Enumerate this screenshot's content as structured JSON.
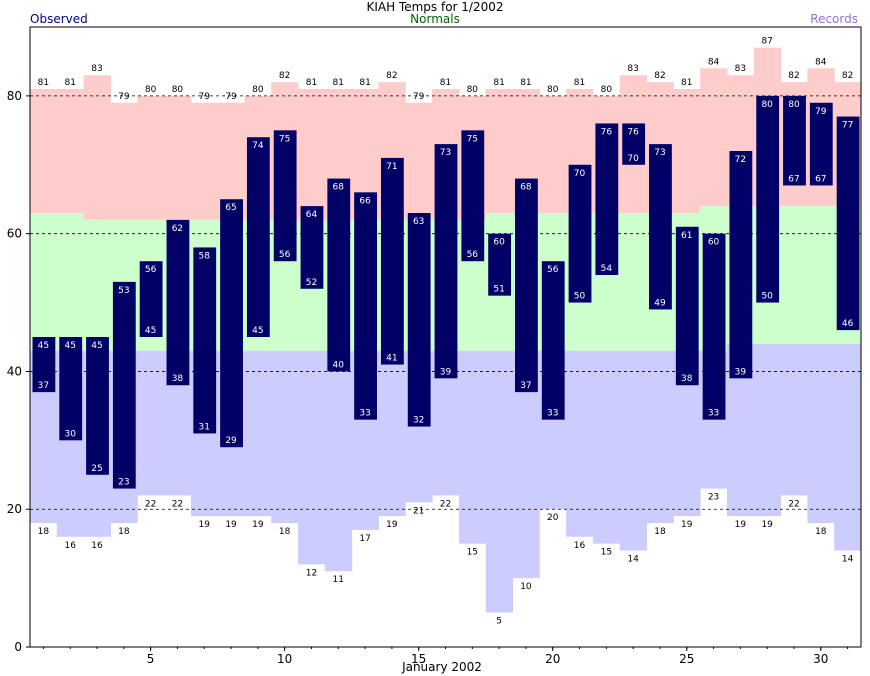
{
  "header": {
    "title": "KIAH Temps for 1/2002",
    "observed_label": "Observed",
    "normals_label": "Normals",
    "records_label": "Records"
  },
  "colors": {
    "observed": "#000066",
    "record_high": "#ffcccc",
    "normal_range": "#ccffcc",
    "record_low": "#ccccff",
    "observed_legend": "#000080",
    "normals_legend": "#006400",
    "records_legend": "#9370db"
  },
  "chart_data": {
    "type": "bar",
    "title": "KIAH Temps for 1/2002",
    "xlabel": "January 2002",
    "ylabel": "",
    "xlim": [
      1,
      31
    ],
    "ylim": [
      0,
      90
    ],
    "x_ticks": [
      5,
      10,
      15,
      20,
      25,
      30
    ],
    "y_ticks": [
      0,
      20,
      40,
      60,
      80
    ],
    "gridlines": [
      20,
      40,
      60,
      80
    ],
    "days": [
      1,
      2,
      3,
      4,
      5,
      6,
      7,
      8,
      9,
      10,
      11,
      12,
      13,
      14,
      15,
      16,
      17,
      18,
      19,
      20,
      21,
      22,
      23,
      24,
      25,
      26,
      27,
      28,
      29,
      30,
      31
    ],
    "series": [
      {
        "name": "Observed",
        "high": [
          45,
          45,
          45,
          53,
          56,
          62,
          58,
          65,
          74,
          75,
          64,
          68,
          66,
          71,
          63,
          73,
          75,
          60,
          68,
          56,
          70,
          76,
          76,
          73,
          61,
          60,
          72,
          80,
          80,
          79,
          77
        ],
        "low": [
          37,
          30,
          25,
          23,
          45,
          38,
          31,
          29,
          45,
          56,
          52,
          40,
          33,
          41,
          32,
          39,
          56,
          51,
          37,
          33,
          50,
          54,
          70,
          49,
          38,
          33,
          39,
          50,
          67,
          67,
          46
        ]
      },
      {
        "name": "Normals",
        "high": [
          63,
          63,
          62,
          62,
          62,
          62,
          62,
          62,
          62,
          62,
          62,
          62,
          62,
          62,
          62,
          62,
          62,
          63,
          63,
          63,
          63,
          63,
          63,
          63,
          63,
          64,
          64,
          64,
          64,
          64,
          64
        ],
        "low": [
          43,
          43,
          43,
          43,
          43,
          43,
          43,
          43,
          43,
          43,
          43,
          43,
          43,
          43,
          43,
          43,
          43,
          43,
          43,
          43,
          43,
          43,
          43,
          43,
          43,
          43,
          44,
          44,
          44,
          44,
          44
        ]
      },
      {
        "name": "Records",
        "high": [
          81,
          81,
          83,
          79,
          80,
          80,
          79,
          79,
          80,
          82,
          81,
          81,
          81,
          82,
          79,
          81,
          80,
          81,
          81,
          80,
          81,
          80,
          83,
          82,
          81,
          84,
          83,
          87,
          82,
          84,
          82
        ],
        "low": [
          18,
          16,
          16,
          18,
          22,
          22,
          19,
          19,
          19,
          18,
          12,
          11,
          17,
          19,
          21,
          22,
          15,
          5,
          10,
          20,
          16,
          15,
          14,
          18,
          19,
          23,
          19,
          19,
          22,
          18,
          14
        ]
      }
    ]
  }
}
